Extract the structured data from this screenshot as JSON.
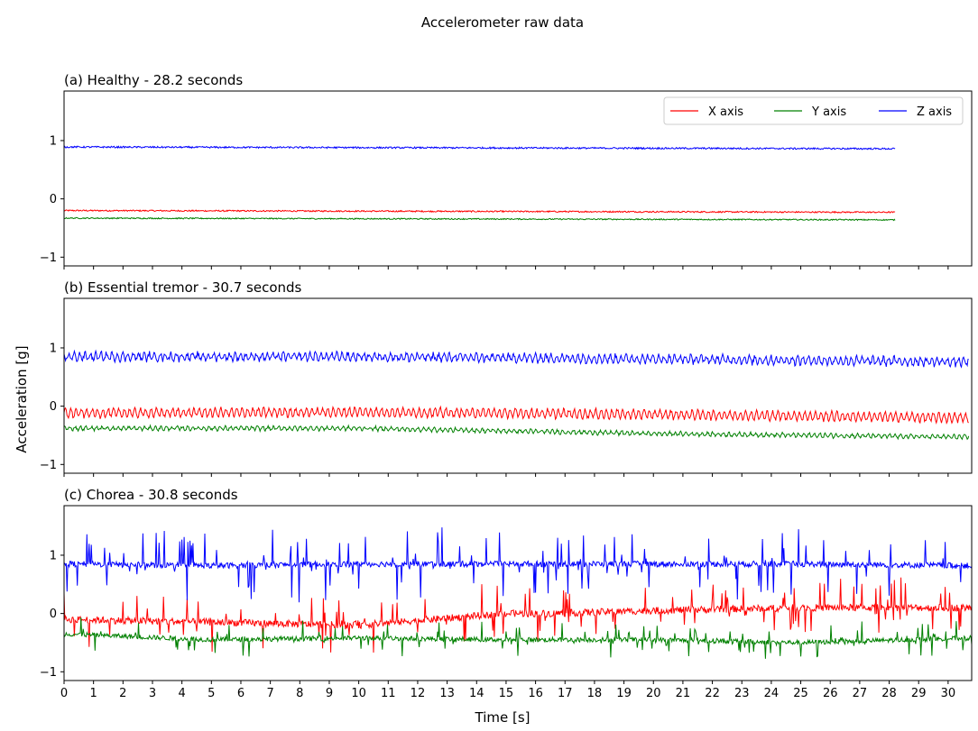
{
  "suptitle": "Accelerometer raw data",
  "xlabel": "Time [s]",
  "ylabel": "Acceleration [g]",
  "legend": {
    "placement": "top-right",
    "entries": [
      {
        "label": "X axis",
        "color": "#ff0000"
      },
      {
        "label": "Y axis",
        "color": "#008000"
      },
      {
        "label": "Z axis",
        "color": "#0000ff"
      }
    ]
  },
  "chart_data": [
    {
      "type": "line",
      "title": "(a) Healthy - 28.2 seconds",
      "duration": 28.2,
      "xlim": [
        0,
        30.8
      ],
      "ylim": [
        -1.15,
        1.85
      ],
      "yticks": [
        -1,
        0,
        1
      ],
      "xticks": [
        0,
        1,
        2,
        3,
        4,
        5,
        6,
        7,
        8,
        9,
        10,
        11,
        12,
        13,
        14,
        15,
        16,
        17,
        18,
        19,
        20,
        21,
        22,
        23,
        24,
        25,
        26,
        27,
        28,
        29,
        30
      ],
      "show_xtick_labels": false,
      "series": [
        {
          "name": "X axis",
          "color": "#ff0000",
          "x": [
            0,
            28.2
          ],
          "y": [
            -0.2,
            -0.23
          ],
          "noise": 0.012,
          "osc": 0.0,
          "spikes": 0.0
        },
        {
          "name": "Y axis",
          "color": "#008000",
          "x": [
            0,
            28.2
          ],
          "y": [
            -0.33,
            -0.36
          ],
          "noise": 0.01,
          "osc": 0.0,
          "spikes": 0.0
        },
        {
          "name": "Z axis",
          "color": "#0000ff",
          "x": [
            0,
            28.2
          ],
          "y": [
            0.89,
            0.86
          ],
          "noise": 0.014,
          "osc": 0.0,
          "spikes": 0.0
        }
      ]
    },
    {
      "type": "line",
      "title": "(b) Essential tremor - 30.7 seconds",
      "duration": 30.7,
      "xlim": [
        0,
        30.8
      ],
      "ylim": [
        -1.15,
        1.85
      ],
      "yticks": [
        -1,
        0,
        1
      ],
      "xticks": [
        0,
        1,
        2,
        3,
        4,
        5,
        6,
        7,
        8,
        9,
        10,
        11,
        12,
        13,
        14,
        15,
        16,
        17,
        18,
        19,
        20,
        21,
        22,
        23,
        24,
        25,
        26,
        27,
        28,
        29,
        30
      ],
      "show_xtick_labels": false,
      "series": [
        {
          "name": "X axis",
          "color": "#ff0000",
          "x": [
            0,
            10,
            20,
            30.7
          ],
          "y": [
            -0.12,
            -0.1,
            -0.14,
            -0.2
          ],
          "noise": 0.03,
          "osc": 0.07,
          "spikes": 0.0
        },
        {
          "name": "Y axis",
          "color": "#008000",
          "x": [
            0,
            10,
            20,
            30.7
          ],
          "y": [
            -0.38,
            -0.38,
            -0.47,
            -0.53
          ],
          "noise": 0.02,
          "osc": 0.03,
          "spikes": 0.0
        },
        {
          "name": "Z axis",
          "color": "#0000ff",
          "x": [
            0,
            10,
            20,
            30.7
          ],
          "y": [
            0.85,
            0.85,
            0.81,
            0.76
          ],
          "noise": 0.04,
          "osc": 0.06,
          "spikes": 0.0
        }
      ]
    },
    {
      "type": "line",
      "title": "(c) Chorea - 30.8 seconds",
      "duration": 30.8,
      "xlim": [
        0,
        30.8
      ],
      "ylim": [
        -1.15,
        1.85
      ],
      "yticks": [
        -1,
        0,
        1
      ],
      "xticks": [
        0,
        1,
        2,
        3,
        4,
        5,
        6,
        7,
        8,
        9,
        10,
        11,
        12,
        13,
        14,
        15,
        16,
        17,
        18,
        19,
        20,
        21,
        22,
        23,
        24,
        25,
        26,
        27,
        28,
        29,
        30
      ],
      "show_xtick_labels": true,
      "series": [
        {
          "name": "X axis",
          "color": "#ff0000",
          "x": [
            0,
            5,
            10,
            15,
            16.5,
            20,
            25,
            30.8
          ],
          "y": [
            -0.1,
            -0.15,
            -0.2,
            0.0,
            0.0,
            0.05,
            0.1,
            0.1
          ],
          "noise": 0.06,
          "osc": 0.0,
          "spikes": 0.25
        },
        {
          "name": "Y axis",
          "color": "#008000",
          "x": [
            0,
            5,
            10,
            15,
            20,
            25,
            30.8
          ],
          "y": [
            -0.35,
            -0.45,
            -0.42,
            -0.45,
            -0.45,
            -0.5,
            -0.42
          ],
          "noise": 0.04,
          "osc": 0.0,
          "spikes": 0.15
        },
        {
          "name": "Z axis",
          "color": "#0000ff",
          "x": [
            0,
            5,
            10,
            15,
            20,
            25,
            30.8
          ],
          "y": [
            0.85,
            0.82,
            0.85,
            0.85,
            0.85,
            0.85,
            0.82
          ],
          "noise": 0.05,
          "osc": 0.0,
          "spikes": 0.3
        }
      ]
    }
  ]
}
